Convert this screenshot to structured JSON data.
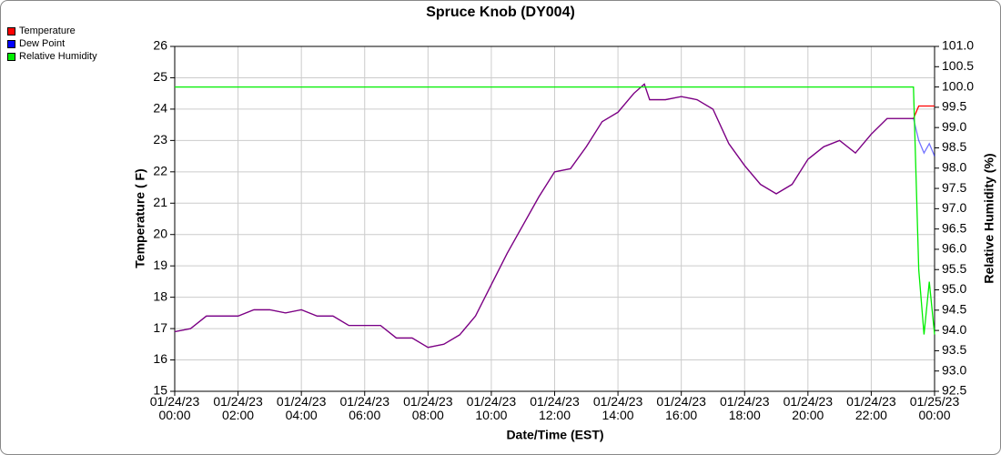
{
  "chart_data": {
    "type": "line",
    "title": "Spruce Knob (DY004)",
    "xlabel": "Date/Time (EST)",
    "ylabel": "Temperature ( F)",
    "y2label": "Relative Humidity (%)",
    "x": [
      "01/24/23 00:00",
      "01/24/23 00:30",
      "01/24/23 01:00",
      "01/24/23 01:30",
      "01/24/23 02:00",
      "01/24/23 02:30",
      "01/24/23 03:00",
      "01/24/23 03:30",
      "01/24/23 04:00",
      "01/24/23 04:30",
      "01/24/23 05:00",
      "01/24/23 05:30",
      "01/24/23 06:00",
      "01/24/23 06:30",
      "01/24/23 07:00",
      "01/24/23 07:30",
      "01/24/23 08:00",
      "01/24/23 08:30",
      "01/24/23 09:00",
      "01/24/23 09:30",
      "01/24/23 10:00",
      "01/24/23 10:30",
      "01/24/23 11:00",
      "01/24/23 11:30",
      "01/24/23 12:00",
      "01/24/23 12:30",
      "01/24/23 13:00",
      "01/24/23 13:30",
      "01/24/23 14:00",
      "01/24/23 14:30",
      "01/24/23 14:50",
      "01/24/23 15:00",
      "01/24/23 15:30",
      "01/24/23 16:00",
      "01/24/23 16:30",
      "01/24/23 17:00",
      "01/24/23 17:30",
      "01/24/23 18:00",
      "01/24/23 18:30",
      "01/24/23 19:00",
      "01/24/23 19:30",
      "01/24/23 20:00",
      "01/24/23 20:30",
      "01/24/23 21:00",
      "01/24/23 21:30",
      "01/24/23 22:00",
      "01/24/23 22:30",
      "01/24/23 23:00",
      "01/24/23 23:20",
      "01/24/23 23:30",
      "01/24/23 23:40",
      "01/24/23 23:50",
      "01/25/23 00:00"
    ],
    "series": [
      {
        "name": "Temperature",
        "color": "#ff0000",
        "values": [
          16.9,
          17.0,
          17.4,
          17.4,
          17.4,
          17.6,
          17.6,
          17.5,
          17.6,
          17.4,
          17.4,
          17.1,
          17.1,
          17.1,
          16.7,
          16.7,
          16.4,
          16.5,
          16.8,
          17.4,
          18.4,
          19.4,
          20.3,
          21.2,
          22.0,
          22.1,
          22.8,
          23.6,
          23.9,
          24.5,
          24.8,
          24.3,
          24.3,
          24.4,
          24.3,
          24.0,
          22.9,
          22.2,
          21.6,
          21.3,
          21.6,
          22.4,
          22.8,
          23.0,
          22.6,
          23.2,
          23.7,
          23.7,
          23.7,
          24.1,
          24.1,
          24.1,
          24.1
        ]
      },
      {
        "name": "Dew Point",
        "color": "#0000ff",
        "values": [
          16.9,
          17.0,
          17.4,
          17.4,
          17.4,
          17.6,
          17.6,
          17.5,
          17.6,
          17.4,
          17.4,
          17.1,
          17.1,
          17.1,
          16.7,
          16.7,
          16.4,
          16.5,
          16.8,
          17.4,
          18.4,
          19.4,
          20.3,
          21.2,
          22.0,
          22.1,
          22.8,
          23.6,
          23.9,
          24.5,
          24.8,
          24.3,
          24.3,
          24.4,
          24.3,
          24.0,
          22.9,
          22.2,
          21.6,
          21.3,
          21.6,
          22.4,
          22.8,
          23.0,
          22.6,
          23.2,
          23.7,
          23.7,
          23.7,
          23.0,
          22.6,
          22.9,
          22.5
        ]
      },
      {
        "name": "Relative Humidity",
        "color": "#00ee00",
        "axis": "y2",
        "values": [
          100.0,
          100.0,
          100.0,
          100.0,
          100.0,
          100.0,
          100.0,
          100.0,
          100.0,
          100.0,
          100.0,
          100.0,
          100.0,
          100.0,
          100.0,
          100.0,
          100.0,
          100.0,
          100.0,
          100.0,
          100.0,
          100.0,
          100.0,
          100.0,
          100.0,
          100.0,
          100.0,
          100.0,
          100.0,
          100.0,
          100.0,
          100.0,
          100.0,
          100.0,
          100.0,
          100.0,
          100.0,
          100.0,
          100.0,
          100.0,
          100.0,
          100.0,
          100.0,
          100.0,
          100.0,
          100.0,
          100.0,
          100.0,
          100.0,
          95.5,
          93.9,
          95.2,
          93.9
        ]
      }
    ],
    "xlim": [
      "01/24/23 00:00",
      "01/25/23 00:00"
    ],
    "xticks": [
      "01/24/23 00:00",
      "01/24/23 02:00",
      "01/24/23 04:00",
      "01/24/23 06:00",
      "01/24/23 08:00",
      "01/24/23 10:00",
      "01/24/23 12:00",
      "01/24/23 14:00",
      "01/24/23 16:00",
      "01/24/23 18:00",
      "01/24/23 20:00",
      "01/24/23 22:00",
      "01/25/23 00:00"
    ],
    "ylim": [
      15,
      26
    ],
    "yticks": [
      15,
      16,
      17,
      18,
      19,
      20,
      21,
      22,
      23,
      24,
      25,
      26
    ],
    "y2lim": [
      92.5,
      101
    ],
    "y2ticks": [
      92.5,
      {
        "value": 93,
        "label": "93.0"
      },
      93.5,
      {
        "value": 94,
        "label": "94.0"
      },
      94.5,
      {
        "value": 95,
        "label": "95.0"
      },
      95.5,
      {
        "value": 96,
        "label": "96.0"
      },
      96.5,
      {
        "value": 97,
        "label": "97.0"
      },
      97.5,
      {
        "value": 98,
        "label": "98.0"
      },
      98.5,
      {
        "value": 99,
        "label": "99.0"
      },
      99.5,
      {
        "value": 100,
        "label": "100.0"
      },
      100.5,
      {
        "value": 101,
        "label": "101.0"
      }
    ],
    "grid": true,
    "legend": "top-left"
  }
}
